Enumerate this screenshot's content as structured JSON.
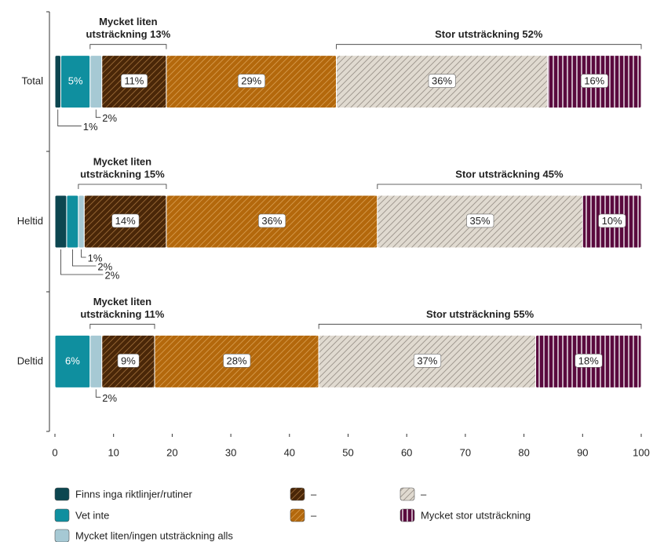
{
  "chart_data": {
    "type": "stacked_barh",
    "categories": [
      "Total",
      "Heltid",
      "Deltid"
    ],
    "series": [
      {
        "name": "Finns inga riktlinjer/rutiner",
        "color": "#0c4650",
        "values": [
          1,
          2,
          0
        ],
        "value_labels": [
          "1%",
          "2%",
          null
        ]
      },
      {
        "name": "Vet inte",
        "color": "#0f8f9f",
        "values": [
          5,
          2,
          6
        ],
        "value_labels": [
          "5%",
          "2%",
          "6%"
        ]
      },
      {
        "name": "Mycket liten/ingen utsträckning alls",
        "color": "#a6c9d4",
        "values": [
          2,
          1,
          2
        ],
        "value_labels": [
          "2%",
          "1%",
          "2%"
        ]
      },
      {
        "name": "–",
        "color": "#4a2708",
        "hatch": "diagonal",
        "hatch_color": "#9a6a36",
        "values": [
          11,
          14,
          9
        ],
        "value_labels": [
          "11%",
          "14%",
          "9%"
        ]
      },
      {
        "name": "–",
        "color": "#b3680c",
        "hatch": "diagonal",
        "hatch_color": "#d69a4c",
        "values": [
          29,
          36,
          28
        ],
        "value_labels": [
          "29%",
          "36%",
          "28%"
        ]
      },
      {
        "name": "–",
        "color": "#e0dad0",
        "hatch": "diagonal",
        "hatch_color": "#9a938a",
        "values": [
          36,
          35,
          37
        ],
        "value_labels": [
          "36%",
          "35%",
          "37%"
        ]
      },
      {
        "name": "Mycket stor utsträckning",
        "color": "#5a0a3e",
        "hatch": "vertical",
        "hatch_color": "#ffffff",
        "values": [
          16,
          10,
          18
        ],
        "value_labels": [
          "16%",
          "10%",
          "18%"
        ]
      }
    ],
    "brackets": [
      {
        "low": [
          "Mycket liten",
          "utsträckning 13%"
        ],
        "high": "Stor utsträckning 52%"
      },
      {
        "low": [
          "Mycket liten",
          "utsträckning 15%"
        ],
        "high": "Stor utsträckning 45%"
      },
      {
        "low": [
          "Mycket liten",
          "utsträckning 11%"
        ],
        "high": "Stor utsträckning 55%"
      }
    ],
    "xlim": [
      0,
      100
    ],
    "xticks": [
      0,
      10,
      20,
      30,
      40,
      50,
      60,
      70,
      80,
      90,
      100
    ]
  }
}
